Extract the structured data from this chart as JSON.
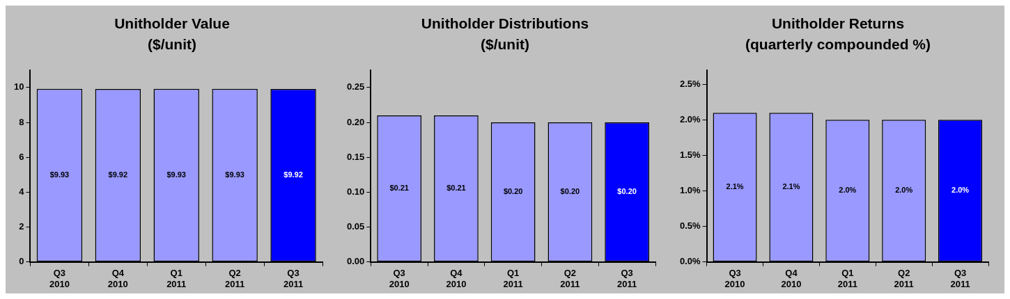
{
  "chart_data": [
    {
      "type": "bar",
      "title": "Unitholder Value\n($/unit)",
      "categories": [
        "Q3 2010",
        "Q4 2010",
        "Q1 2011",
        "Q2 2011",
        "Q3 2011"
      ],
      "values": [
        9.93,
        9.92,
        9.93,
        9.93,
        9.92
      ],
      "colors": [
        "#9999ff",
        "#9999ff",
        "#9999ff",
        "#9999ff",
        "#0000ff"
      ],
      "value_labels": [
        "$9.93",
        "$9.92",
        "$9.93",
        "$9.93",
        "$9.92"
      ],
      "ylim": [
        0,
        11
      ],
      "yticks": [
        0,
        2,
        4,
        6,
        8,
        10
      ]
    },
    {
      "type": "bar",
      "title": "Unitholder Distributions\n($/unit)",
      "categories": [
        "Q3 2010",
        "Q4 2010",
        "Q1 2011",
        "Q2 2011",
        "Q3 2011"
      ],
      "values": [
        0.21,
        0.21,
        0.2,
        0.2,
        0.2
      ],
      "colors": [
        "#9999ff",
        "#9999ff",
        "#9999ff",
        "#9999ff",
        "#0000ff"
      ],
      "value_labels": [
        "$0.21",
        "$0.21",
        "$0.20",
        "$0.20",
        "$0.20"
      ],
      "ylim": [
        0,
        0.275
      ],
      "yticks": [
        {
          "value": 0,
          "label": "0.00"
        },
        0.05,
        {
          "value": 0.1,
          "label": "0.10"
        },
        0.15,
        {
          "value": 0.2,
          "label": "0.20"
        },
        0.25
      ]
    },
    {
      "type": "bar",
      "title": "Unitholder Returns\n(quarterly compounded %)",
      "categories": [
        "Q3 2010",
        "Q4 2010",
        "Q1 2011",
        "Q2 2011",
        "Q3 2011"
      ],
      "values": [
        2.1,
        2.1,
        2.0,
        2.0,
        2.0
      ],
      "colors": [
        "#9999ff",
        "#9999ff",
        "#9999ff",
        "#9999ff",
        "#0000ff"
      ],
      "value_labels": [
        "2.1%",
        "2.1%",
        "2.0%",
        "2.0%",
        "2.0%"
      ],
      "ylim": [
        0,
        2.7
      ],
      "yticks": [
        {
          "value": 0,
          "label": "0.0%"
        },
        {
          "value": 0.5,
          "label": "0.5%"
        },
        {
          "value": 1,
          "label": "1.0%"
        },
        {
          "value": 1.5,
          "label": "1.5%"
        },
        {
          "value": 2,
          "label": "2.0%"
        },
        {
          "value": 2.5,
          "label": "2.5%"
        }
      ]
    }
  ]
}
